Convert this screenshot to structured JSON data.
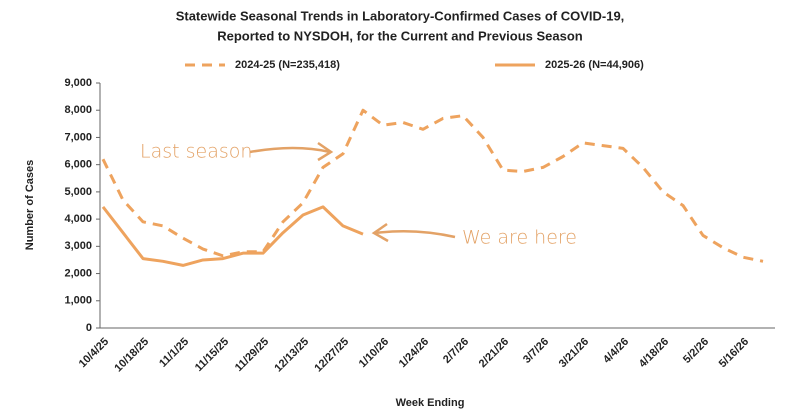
{
  "chart_data": {
    "type": "line",
    "title": "Statewide Seasonal Trends in Laboratory-Confirmed  Cases of COVID-19,",
    "subtitle": "Reported to NYSDOH, for the Current and Previous Season",
    "x_label": "Week Ending",
    "y_label": "Number of Cases",
    "categories": [
      "10/4/25",
      null,
      "10/18/25",
      null,
      "11/1/25",
      null,
      "11/15/25",
      null,
      "11/29/25",
      null,
      "12/13/25",
      null,
      "12/27/25",
      null,
      "1/10/26",
      null,
      "1/24/26",
      null,
      "2/7/26",
      null,
      "2/21/26",
      null,
      "3/7/26",
      null,
      "3/21/26",
      null,
      "4/4/26",
      null,
      "4/18/26",
      null,
      "5/2/26",
      null,
      "5/16/26",
      null
    ],
    "series": [
      {
        "name": "2024-25 (N=235,418)",
        "color": "#eea35e",
        "dashed": true,
        "values": [
          6200,
          4700,
          3900,
          3750,
          3300,
          2900,
          2650,
          2800,
          2800,
          3900,
          4600,
          5900,
          6400,
          8000,
          7450,
          7550,
          7300,
          7700,
          7800,
          7000,
          5800,
          5750,
          5900,
          6300,
          6800,
          6700,
          6600,
          5900,
          5000,
          4500,
          3400,
          2950,
          2600,
          2450
        ]
      },
      {
        "name": "2025-26 (N=44,906)",
        "color": "#eea35e",
        "dashed": false,
        "values": [
          4450,
          3500,
          2550,
          2450,
          2300,
          2500,
          2550,
          2750,
          2750,
          3500,
          4150,
          4450,
          3750,
          3450,
          null,
          null,
          null,
          null,
          null,
          null,
          null,
          null,
          null,
          null,
          null,
          null,
          null,
          null,
          null,
          null,
          null,
          null,
          null,
          null
        ]
      }
    ],
    "ylim": [
      0,
      9000
    ],
    "yticks": [
      0,
      {
        "value": 1000,
        "label": "1,000"
      },
      {
        "value": 2000,
        "label": "2,000"
      },
      {
        "value": 3000,
        "label": "3,000"
      },
      {
        "value": 4000,
        "label": "4,000"
      },
      {
        "value": 5000,
        "label": "5,000"
      },
      {
        "value": 6000,
        "label": "6,000"
      },
      {
        "value": 7000,
        "label": "7,000"
      },
      {
        "value": 8000,
        "label": "8,000"
      },
      {
        "value": 9000,
        "label": "9,000"
      }
    ],
    "grid": false,
    "annotations": [
      "Last season",
      "We are here"
    ]
  }
}
